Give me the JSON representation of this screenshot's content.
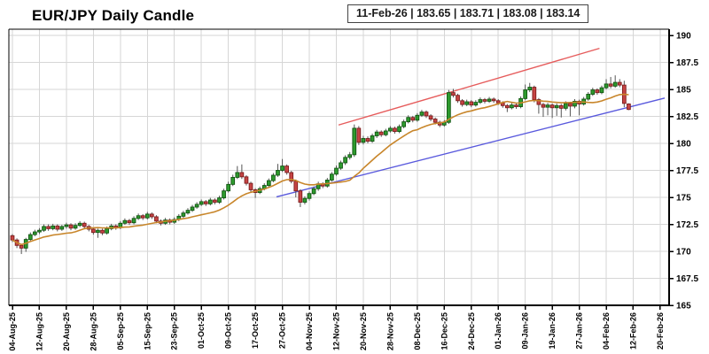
{
  "title": "EUR/JPY Daily Candle",
  "info_box": {
    "text": "11-Feb-26 | 183.65 | 183.71 | 183.08 | 183.14"
  },
  "chart_data": {
    "type": "candlestick",
    "title": "EUR/JPY Daily Candle",
    "ylim": [
      165,
      190
    ],
    "y_tick_step": 2.5,
    "y_tick_labels": [
      "165",
      "167.5",
      "170",
      "172.5",
      "175",
      "177.5",
      "180",
      "182.5",
      "185",
      "187.5",
      "190"
    ],
    "x_tick_every_n_candles": 6,
    "x_tick_labels": [
      "04-Aug-25",
      "12-Aug-25",
      "20-Aug-25",
      "28-Aug-25",
      "05-Sep-25",
      "15-Sep-25",
      "23-Sep-25",
      "01-Oct-25",
      "09-Oct-25",
      "17-Oct-25",
      "27-Oct-25",
      "04-Nov-25",
      "12-Nov-25",
      "20-Nov-25",
      "28-Nov-25",
      "08-Dec-25",
      "16-Dec-25",
      "24-Dec-25",
      "01-Jan-26",
      "09-Jan-26",
      "19-Jan-26",
      "27-Jan-26",
      "04-Feb-26",
      "12-Feb-26",
      "20-Feb-26"
    ],
    "grid": true,
    "legend": "none",
    "dates": [
      "04-Aug-25",
      "05-Aug-25",
      "06-Aug-25",
      "07-Aug-25",
      "08-Aug-25",
      "11-Aug-25",
      "12-Aug-25",
      "13-Aug-25",
      "14-Aug-25",
      "15-Aug-25",
      "18-Aug-25",
      "19-Aug-25",
      "20-Aug-25",
      "21-Aug-25",
      "22-Aug-25",
      "25-Aug-25",
      "26-Aug-25",
      "27-Aug-25",
      "28-Aug-25",
      "29-Aug-25",
      "01-Sep-25",
      "02-Sep-25",
      "03-Sep-25",
      "04-Sep-25",
      "05-Sep-25",
      "08-Sep-25",
      "09-Sep-25",
      "10-Sep-25",
      "11-Sep-25",
      "12-Sep-25",
      "15-Sep-25",
      "16-Sep-25",
      "17-Sep-25",
      "18-Sep-25",
      "19-Sep-25",
      "22-Sep-25",
      "23-Sep-25",
      "24-Sep-25",
      "25-Sep-25",
      "26-Sep-25",
      "29-Sep-25",
      "30-Sep-25",
      "01-Oct-25",
      "02-Oct-25",
      "03-Oct-25",
      "06-Oct-25",
      "07-Oct-25",
      "08-Oct-25",
      "09-Oct-25",
      "10-Oct-25",
      "13-Oct-25",
      "14-Oct-25",
      "15-Oct-25",
      "16-Oct-25",
      "17-Oct-25",
      "20-Oct-25",
      "21-Oct-25",
      "22-Oct-25",
      "23-Oct-25",
      "24-Oct-25",
      "27-Oct-25",
      "28-Oct-25",
      "29-Oct-25",
      "30-Oct-25",
      "31-Oct-25",
      "03-Nov-25",
      "04-Nov-25",
      "05-Nov-25",
      "06-Nov-25",
      "07-Nov-25",
      "10-Nov-25",
      "11-Nov-25",
      "12-Nov-25",
      "13-Nov-25",
      "14-Nov-25",
      "17-Nov-25",
      "18-Nov-25",
      "19-Nov-25",
      "20-Nov-25",
      "21-Nov-25",
      "24-Nov-25",
      "25-Nov-25",
      "26-Nov-25",
      "27-Nov-25",
      "28-Nov-25",
      "01-Dec-25",
      "02-Dec-25",
      "03-Dec-25",
      "04-Dec-25",
      "05-Dec-25",
      "08-Dec-25",
      "09-Dec-25",
      "10-Dec-25",
      "11-Dec-25",
      "12-Dec-25",
      "15-Dec-25",
      "16-Dec-25",
      "17-Dec-25",
      "18-Dec-25",
      "19-Dec-25",
      "22-Dec-25",
      "23-Dec-25",
      "24-Dec-25",
      "25-Dec-25",
      "26-Dec-25",
      "29-Dec-25",
      "30-Dec-25",
      "31-Dec-25",
      "01-Jan-26",
      "02-Jan-26",
      "05-Jan-26",
      "06-Jan-26",
      "07-Jan-26",
      "08-Jan-26",
      "09-Jan-26",
      "12-Jan-26",
      "13-Jan-26",
      "14-Jan-26",
      "15-Jan-26",
      "16-Jan-26",
      "19-Jan-26",
      "20-Jan-26",
      "21-Jan-26",
      "22-Jan-26",
      "23-Jan-26",
      "26-Jan-26",
      "27-Jan-26",
      "28-Jan-26",
      "29-Jan-26",
      "30-Jan-26",
      "02-Feb-26",
      "03-Feb-26",
      "04-Feb-26",
      "05-Feb-26",
      "06-Feb-26",
      "09-Feb-26",
      "10-Feb-26",
      "11-Feb-26"
    ],
    "open": [
      171.45,
      171.05,
      170.55,
      170.3,
      171.1,
      171.55,
      171.8,
      171.95,
      172.3,
      172.1,
      172.35,
      172.05,
      172.3,
      172.45,
      172.15,
      172.4,
      172.6,
      172.3,
      172.05,
      171.75,
      171.95,
      171.7,
      172.1,
      172.35,
      172.2,
      172.6,
      172.85,
      172.65,
      173.05,
      173.3,
      173.1,
      173.45,
      173.2,
      172.8,
      172.6,
      172.9,
      172.7,
      172.95,
      173.25,
      173.55,
      173.8,
      174.1,
      174.35,
      174.6,
      174.4,
      174.75,
      174.55,
      174.95,
      175.6,
      176.2,
      176.85,
      177.3,
      176.9,
      176.3,
      175.7,
      175.45,
      175.8,
      176.1,
      176.55,
      177.05,
      177.5,
      177.9,
      177.3,
      176.5,
      175.6,
      174.55,
      174.9,
      175.35,
      175.8,
      176.25,
      176.05,
      176.6,
      177.15,
      177.7,
      178.2,
      178.7,
      178.95,
      181.4,
      180.1,
      180.45,
      180.2,
      180.7,
      181.05,
      180.8,
      181.15,
      181.4,
      181.1,
      181.55,
      182.0,
      182.4,
      182.15,
      182.6,
      182.9,
      182.55,
      182.25,
      181.95,
      181.7,
      181.95,
      184.7,
      184.45,
      183.95,
      183.6,
      183.85,
      183.55,
      183.8,
      184.05,
      183.9,
      184.1,
      183.95,
      183.75,
      183.5,
      183.3,
      183.55,
      183.4,
      184.15,
      184.95,
      185.2,
      184.05,
      183.6,
      183.35,
      183.55,
      183.3,
      183.5,
      183.25,
      183.7,
      183.45,
      183.9,
      183.65,
      184.1,
      184.55,
      184.95,
      184.7,
      185.15,
      185.5,
      185.3,
      185.65,
      185.4,
      183.65
    ],
    "high": [
      171.6,
      171.2,
      170.7,
      171.25,
      171.75,
      172.0,
      172.15,
      172.5,
      172.5,
      172.55,
      172.5,
      172.45,
      172.65,
      172.6,
      172.6,
      172.8,
      172.75,
      172.45,
      172.2,
      172.1,
      172.1,
      172.3,
      172.55,
      172.5,
      172.8,
      173.05,
      173.0,
      173.25,
      173.5,
      173.45,
      173.65,
      173.6,
      173.35,
      172.95,
      173.1,
      173.05,
      173.15,
      173.45,
      173.75,
      174.0,
      174.3,
      174.55,
      174.8,
      174.75,
      174.95,
      174.9,
      175.15,
      175.8,
      176.45,
      177.1,
      177.9,
      178.05,
      177.05,
      176.45,
      175.85,
      176.0,
      176.3,
      176.75,
      177.25,
      178.1,
      178.55,
      178.05,
      177.45,
      176.65,
      175.75,
      175.1,
      175.55,
      176.0,
      176.45,
      176.4,
      176.8,
      177.35,
      177.95,
      178.4,
      178.9,
      179.2,
      181.75,
      181.6,
      180.7,
      180.65,
      180.9,
      181.25,
      181.2,
      181.35,
      181.6,
      181.55,
      181.75,
      182.2,
      182.6,
      182.55,
      182.8,
      183.1,
      183.05,
      182.7,
      182.4,
      182.1,
      182.15,
      184.95,
      185.05,
      184.6,
      184.1,
      184.05,
      184.0,
      184.0,
      184.25,
      184.2,
      184.3,
      184.25,
      184.1,
      183.9,
      183.65,
      183.75,
      183.7,
      184.35,
      185.45,
      185.6,
      185.35,
      184.2,
      183.75,
      183.75,
      183.7,
      183.7,
      183.65,
      183.9,
      183.85,
      184.1,
      184.05,
      184.3,
      184.75,
      185.15,
      185.1,
      185.35,
      185.95,
      186.15,
      186.3,
      185.95,
      185.8,
      183.71
    ],
    "low": [
      170.85,
      170.3,
      169.75,
      169.95,
      170.95,
      171.4,
      171.6,
      171.8,
      171.9,
      171.95,
      171.85,
      171.9,
      172.1,
      171.95,
      172.0,
      172.25,
      172.1,
      171.85,
      171.55,
      171.25,
      171.5,
      171.55,
      171.95,
      172.0,
      172.05,
      172.45,
      172.45,
      172.5,
      172.9,
      172.9,
      172.95,
      173.0,
      172.6,
      172.4,
      172.45,
      172.5,
      172.55,
      172.8,
      173.1,
      173.4,
      173.65,
      173.95,
      174.2,
      174.2,
      174.25,
      174.35,
      174.4,
      174.8,
      175.45,
      176.05,
      176.7,
      176.7,
      176.1,
      175.5,
      174.95,
      175.3,
      175.65,
      175.95,
      176.4,
      176.9,
      177.35,
      177.1,
      176.3,
      175.0,
      174.1,
      174.35,
      174.7,
      175.2,
      175.6,
      175.85,
      175.9,
      176.45,
      177.0,
      177.55,
      178.0,
      178.5,
      178.75,
      179.85,
      179.9,
      180.0,
      180.05,
      180.5,
      180.6,
      180.65,
      181.0,
      180.9,
      180.95,
      181.4,
      181.85,
      181.95,
      182.0,
      182.45,
      182.35,
      182.05,
      181.75,
      181.5,
      181.55,
      181.8,
      184.25,
      183.75,
      183.4,
      183.45,
      183.35,
      183.4,
      183.65,
      183.7,
      183.75,
      183.75,
      183.55,
      183.3,
      182.9,
      183.15,
      183.2,
      183.25,
      184.0,
      184.75,
      183.8,
      182.75,
      182.45,
      182.6,
      182.35,
      182.55,
      182.4,
      183.05,
      182.5,
      183.25,
      182.6,
      183.5,
      183.95,
      184.4,
      184.5,
      184.55,
      185.0,
      185.1,
      185.15,
      185.2,
      183.35,
      183.08
    ],
    "close": [
      171.05,
      170.55,
      170.3,
      171.1,
      171.55,
      171.8,
      171.95,
      172.3,
      172.1,
      172.35,
      172.05,
      172.3,
      172.45,
      172.15,
      172.4,
      172.6,
      172.3,
      172.05,
      171.75,
      171.95,
      171.7,
      172.1,
      172.35,
      172.2,
      172.6,
      172.85,
      172.65,
      173.05,
      173.3,
      173.1,
      173.45,
      173.2,
      172.8,
      172.6,
      172.9,
      172.7,
      172.95,
      173.25,
      173.55,
      173.8,
      174.1,
      174.35,
      174.6,
      174.4,
      174.75,
      174.55,
      174.95,
      175.6,
      176.2,
      176.85,
      177.3,
      176.9,
      176.3,
      175.7,
      175.45,
      175.8,
      176.1,
      176.55,
      177.05,
      177.5,
      177.9,
      177.3,
      176.5,
      175.6,
      174.55,
      174.9,
      175.35,
      175.8,
      176.25,
      176.05,
      176.6,
      177.15,
      177.7,
      178.2,
      178.7,
      178.95,
      181.4,
      180.1,
      180.45,
      180.2,
      180.7,
      181.05,
      180.8,
      181.15,
      181.4,
      181.1,
      181.55,
      182.0,
      182.4,
      182.15,
      182.6,
      182.9,
      182.55,
      182.25,
      181.95,
      181.7,
      181.95,
      184.7,
      184.45,
      183.95,
      183.6,
      183.85,
      183.55,
      183.8,
      184.05,
      183.9,
      184.1,
      183.95,
      183.75,
      183.5,
      183.3,
      183.55,
      183.4,
      184.15,
      184.95,
      185.2,
      184.05,
      183.6,
      183.35,
      183.55,
      183.3,
      183.5,
      183.25,
      183.7,
      183.45,
      183.9,
      183.65,
      184.1,
      184.55,
      184.95,
      184.7,
      185.15,
      185.5,
      185.3,
      185.65,
      185.4,
      183.7,
      183.14
    ],
    "moving_average": {
      "period": 14,
      "color": "#c8862b"
    },
    "trendlines": [
      {
        "name": "resistance-trendline",
        "color": "#e65c5c",
        "i1": 72.5,
        "p1": 181.7,
        "i2": 130.5,
        "p2": 188.8
      },
      {
        "name": "support-trendline",
        "color": "#5959dd",
        "i1": 58.7,
        "p1": 175.05,
        "i2": 145.0,
        "p2": 184.2
      }
    ],
    "colors": {
      "up_fill": "#2e9b2e",
      "up_border": "#115511",
      "down_fill": "#c64444",
      "down_border": "#7c1c1c",
      "wick": "#555555",
      "grid": "#d6d6d6",
      "axis": "#000000"
    }
  }
}
